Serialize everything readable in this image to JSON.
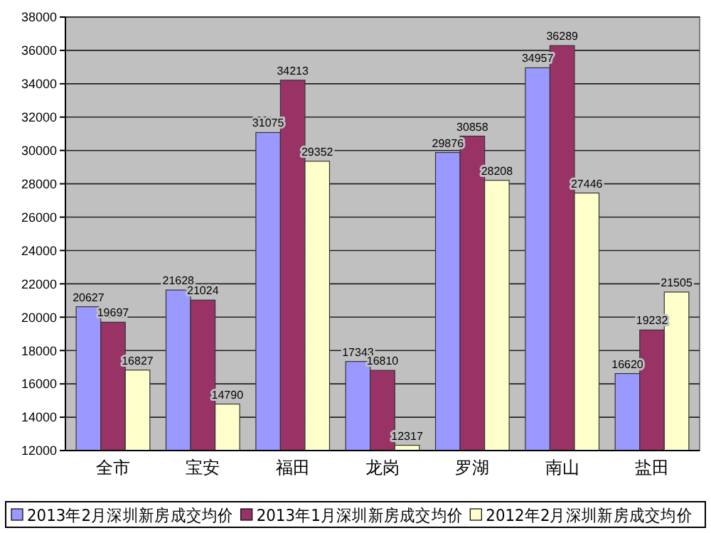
{
  "chart_data": {
    "type": "bar",
    "categories": [
      "全市",
      "宝安",
      "福田",
      "龙岗",
      "罗湖",
      "南山",
      "盐田"
    ],
    "series": [
      {
        "name": "2013年2月深圳新房成交均价",
        "color": "#9999ff",
        "values": [
          20627,
          21628,
          31075,
          17343,
          29876,
          34957,
          16620
        ]
      },
      {
        "name": "2013年1月深圳新房成交均价",
        "color": "#993366",
        "values": [
          19697,
          21024,
          34213,
          16810,
          30858,
          36289,
          19232
        ]
      },
      {
        "name": "2012年2月深圳新房成交均价",
        "color": "#ffffcc",
        "values": [
          16827,
          14790,
          29352,
          12317,
          28208,
          27446,
          21505
        ]
      }
    ],
    "ylim": [
      12000,
      38000
    ],
    "yticks": [
      12000,
      14000,
      16000,
      18000,
      20000,
      22000,
      24000,
      26000,
      28000,
      30000,
      32000,
      34000,
      36000,
      38000
    ],
    "grid": "y",
    "data_labels": true,
    "legend": "bottom"
  }
}
